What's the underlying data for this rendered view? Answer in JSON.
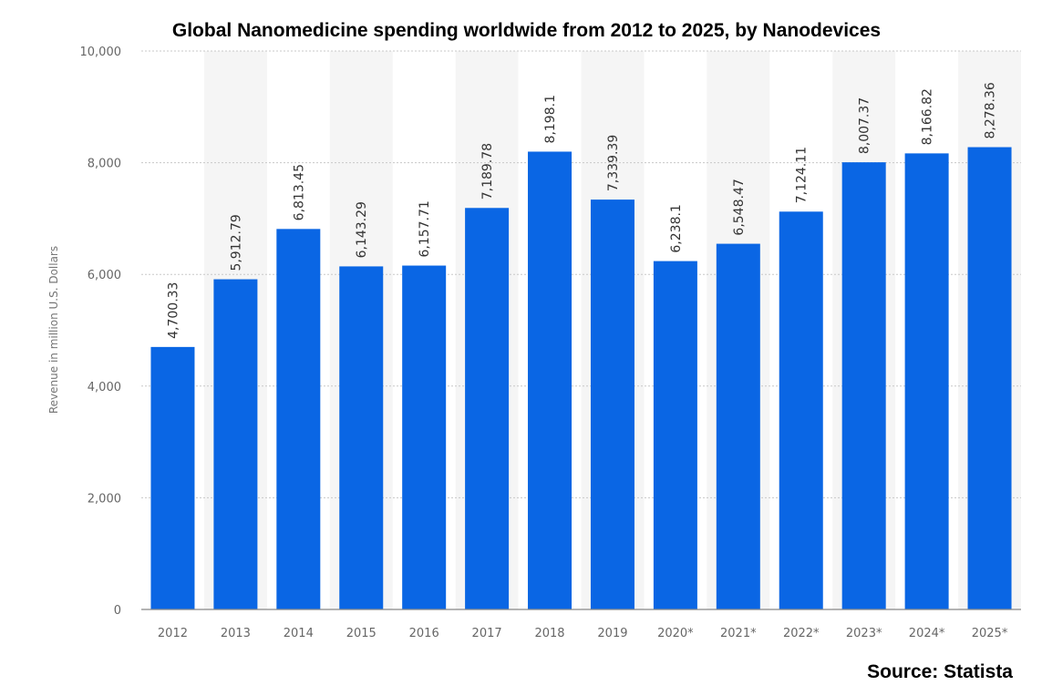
{
  "chart_data": {
    "type": "bar",
    "title": "Global Nanomedicine spending worldwide from 2012 to 2025, by Nanodevices",
    "ylabel": "Revenue in million U.S. Dollars",
    "xlabel": "",
    "ylim": [
      0,
      10000
    ],
    "yticks": [
      "0",
      "2,000",
      "4,000",
      "6,000",
      "8,000",
      "10,000"
    ],
    "categories": [
      "2012",
      "2013",
      "2014",
      "2015",
      "2016",
      "2017",
      "2018",
      "2019",
      "2020*",
      "2021*",
      "2022*",
      "2023*",
      "2024*",
      "2025*"
    ],
    "values": [
      4700.33,
      5912.79,
      6813.45,
      6143.29,
      6157.71,
      7189.78,
      8198.1,
      7339.39,
      6238.1,
      6548.47,
      7124.11,
      8007.37,
      8166.82,
      8278.36
    ],
    "value_labels": [
      "4,700.33",
      "5,912.79",
      "6,813.45",
      "6,143.29",
      "6,157.71",
      "7,189.78",
      "8,198.1",
      "7,339.39",
      "6,238.1",
      "6,548.47",
      "7,124.11",
      "8,007.37",
      "8,166.82",
      "8,278.36"
    ],
    "bar_color": "#0a66e4",
    "grid": true,
    "legend": "none"
  },
  "source": "Source: Statista"
}
